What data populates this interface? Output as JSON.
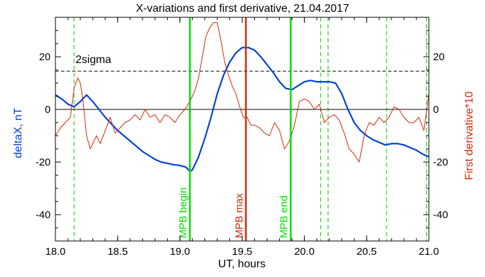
{
  "chart_data": {
    "type": "line",
    "title": "X-variations and first derivative, 21.04.2017",
    "xlabel": "UT, hours",
    "ylabel_left": "deltaX, nT",
    "ylabel_right": "First derivative*10",
    "xlim": [
      18.0,
      21.0
    ],
    "ylim": [
      -50,
      35
    ],
    "x_ticks": [
      18.0,
      18.5,
      19.0,
      19.5,
      20.0,
      20.5,
      21.0
    ],
    "x_tick_labels": [
      "18.0",
      "18.5",
      "19.0",
      "19.5",
      "20.0",
      "20.5",
      "21.0"
    ],
    "y_ticks": [
      -40,
      -20,
      0,
      20
    ],
    "y_tick_labels": [
      "-40",
      "-20",
      "0",
      "20"
    ],
    "grid": false,
    "threshold": {
      "label": "2sigma",
      "value": 14.5,
      "color": "#000000"
    },
    "zero_line": 0,
    "colors": {
      "deltaX": "#0040d8",
      "derivative": "#d02808",
      "mpb_edges": "#00dd00",
      "mpb_max": "#d02808",
      "dashed": "#00cc00",
      "axes": "#000000"
    },
    "series": [
      {
        "key": "deltaX",
        "axis": "left",
        "color": "#0040d8",
        "x": [
          18.0,
          18.05,
          18.1,
          18.15,
          18.2,
          18.25,
          18.3,
          18.35,
          18.4,
          18.45,
          18.5,
          18.55,
          18.6,
          18.65,
          18.7,
          18.75,
          18.8,
          18.85,
          18.9,
          18.95,
          19.0,
          19.05,
          19.08,
          19.1,
          19.15,
          19.2,
          19.25,
          19.3,
          19.35,
          19.4,
          19.45,
          19.5,
          19.55,
          19.6,
          19.65,
          19.7,
          19.75,
          19.8,
          19.85,
          19.9,
          19.95,
          20.0,
          20.05,
          20.1,
          20.15,
          20.2,
          20.25,
          20.3,
          20.35,
          20.4,
          20.45,
          20.5,
          20.55,
          20.6,
          20.65,
          20.7,
          20.75,
          20.8,
          20.85,
          20.9,
          20.95,
          21.0
        ],
        "y": [
          5.5,
          4,
          2,
          1,
          3,
          5.5,
          3,
          0,
          -3,
          -5.5,
          -8,
          -10,
          -12,
          -14,
          -16,
          -17.5,
          -19,
          -20,
          -20.5,
          -21,
          -21.3,
          -22,
          -23.5,
          -23,
          -18,
          -11,
          -3,
          6,
          13,
          18,
          21.5,
          23.5,
          23.5,
          22.5,
          20,
          17,
          14,
          10.5,
          8,
          7.5,
          9,
          10.5,
          11,
          10.5,
          10.5,
          10.5,
          10,
          6,
          0,
          -5,
          -8,
          -10,
          -11.5,
          -12.5,
          -13.5,
          -13,
          -13,
          -13.5,
          -14.5,
          -15.5,
          -17,
          -18
        ]
      },
      {
        "key": "derivative",
        "axis": "right",
        "color": "#d02808",
        "x": [
          18.0,
          18.04,
          18.08,
          18.12,
          18.15,
          18.18,
          18.2,
          18.22,
          18.25,
          18.28,
          18.3,
          18.33,
          18.36,
          18.4,
          18.44,
          18.48,
          18.52,
          18.56,
          18.6,
          18.64,
          18.68,
          18.72,
          18.76,
          18.8,
          18.84,
          18.88,
          18.92,
          18.96,
          19.0,
          19.04,
          19.08,
          19.12,
          19.15,
          19.18,
          19.21,
          19.24,
          19.27,
          19.3,
          19.33,
          19.36,
          19.39,
          19.42,
          19.45,
          19.48,
          19.51,
          19.54,
          19.57,
          19.6,
          19.64,
          19.68,
          19.72,
          19.76,
          19.8,
          19.84,
          19.88,
          19.92,
          19.96,
          20.0,
          20.04,
          20.08,
          20.12,
          20.16,
          20.2,
          20.24,
          20.28,
          20.32,
          20.36,
          20.4,
          20.44,
          20.48,
          20.52,
          20.56,
          20.6,
          20.64,
          20.68,
          20.72,
          20.76,
          20.8,
          20.84,
          20.88,
          20.92,
          20.96,
          21.0
        ],
        "y": [
          -10,
          -7,
          -5,
          -3,
          8,
          12,
          10,
          4,
          -10,
          -15,
          -13,
          -10,
          -13,
          -8,
          -3,
          -9,
          -7,
          -5,
          -4,
          -2,
          -4,
          0,
          -3,
          -2,
          -5,
          -2,
          -3,
          -5,
          -2,
          0,
          3,
          7,
          12,
          20,
          28,
          31,
          33,
          33,
          26,
          18,
          13,
          9,
          6,
          1,
          -3,
          -3,
          -6,
          -6,
          -7,
          -9,
          -10,
          -5,
          -8,
          -15,
          -12,
          -6,
          3,
          4,
          3,
          0,
          2,
          -5,
          -3,
          -2,
          -4,
          -9,
          -15,
          -17,
          -20,
          -10,
          -5,
          -6,
          -3,
          -5,
          -3,
          1,
          0,
          -3,
          -5,
          -5,
          -3,
          -8,
          6
        ]
      }
    ],
    "vertical_lines": [
      {
        "x": 19.08,
        "label": "MPB begin",
        "color": "#00dd00"
      },
      {
        "x": 19.53,
        "label": "MPB max",
        "color": "#d02808"
      },
      {
        "x": 19.89,
        "label": "MPB end",
        "color": "#00dd00"
      }
    ],
    "dashed_lines": [
      18.15,
      20.13,
      20.19,
      20.66,
      20.98
    ]
  }
}
